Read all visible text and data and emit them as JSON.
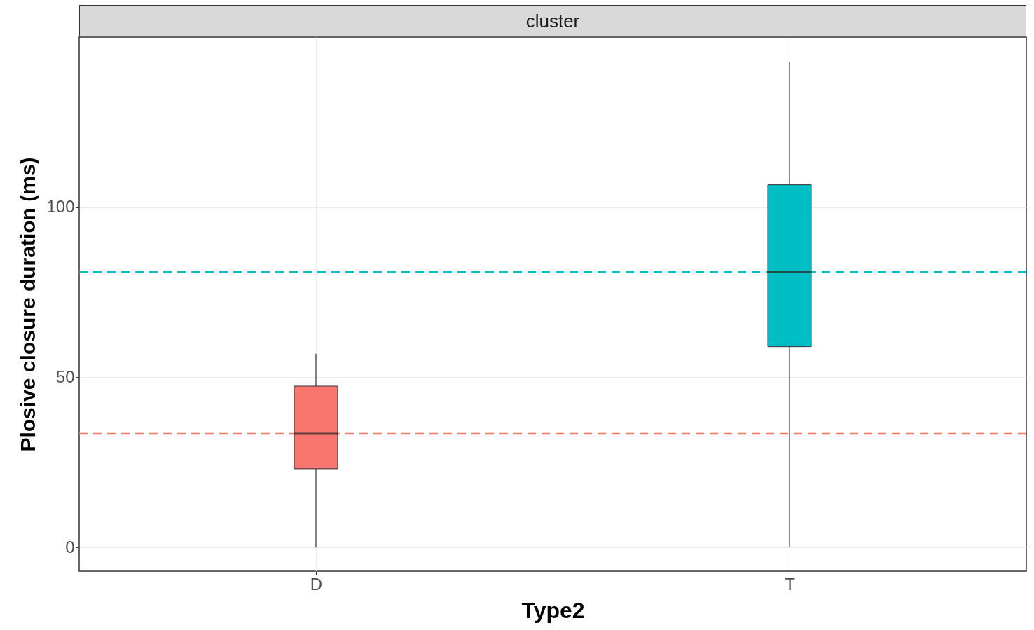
{
  "chart_data": {
    "type": "box",
    "title": "cluster",
    "xlabel": "Type2",
    "ylabel": "Plosive closure duration (ms)",
    "categories": [
      "D",
      "T"
    ],
    "colors": [
      "#f8766d",
      "#00bfc4"
    ],
    "boxes": [
      {
        "low": 0,
        "q1": 23.1,
        "median": 33.4,
        "q3": 47.4,
        "high": 56.9
      },
      {
        "low": 0,
        "q1": 59.0,
        "median": 81.0,
        "q3": 106.6,
        "high": 142.7
      }
    ],
    "ref_lines": [
      {
        "axis": "y",
        "value": 81.0,
        "color": "#00bfc4",
        "line_style": "dashed"
      },
      {
        "axis": "y",
        "value": 33.4,
        "color": "#f8766d",
        "line_style": "dashed"
      }
    ],
    "ylim": [
      -7,
      150
    ],
    "yticks": [
      0,
      50,
      100
    ],
    "grid": true
  }
}
